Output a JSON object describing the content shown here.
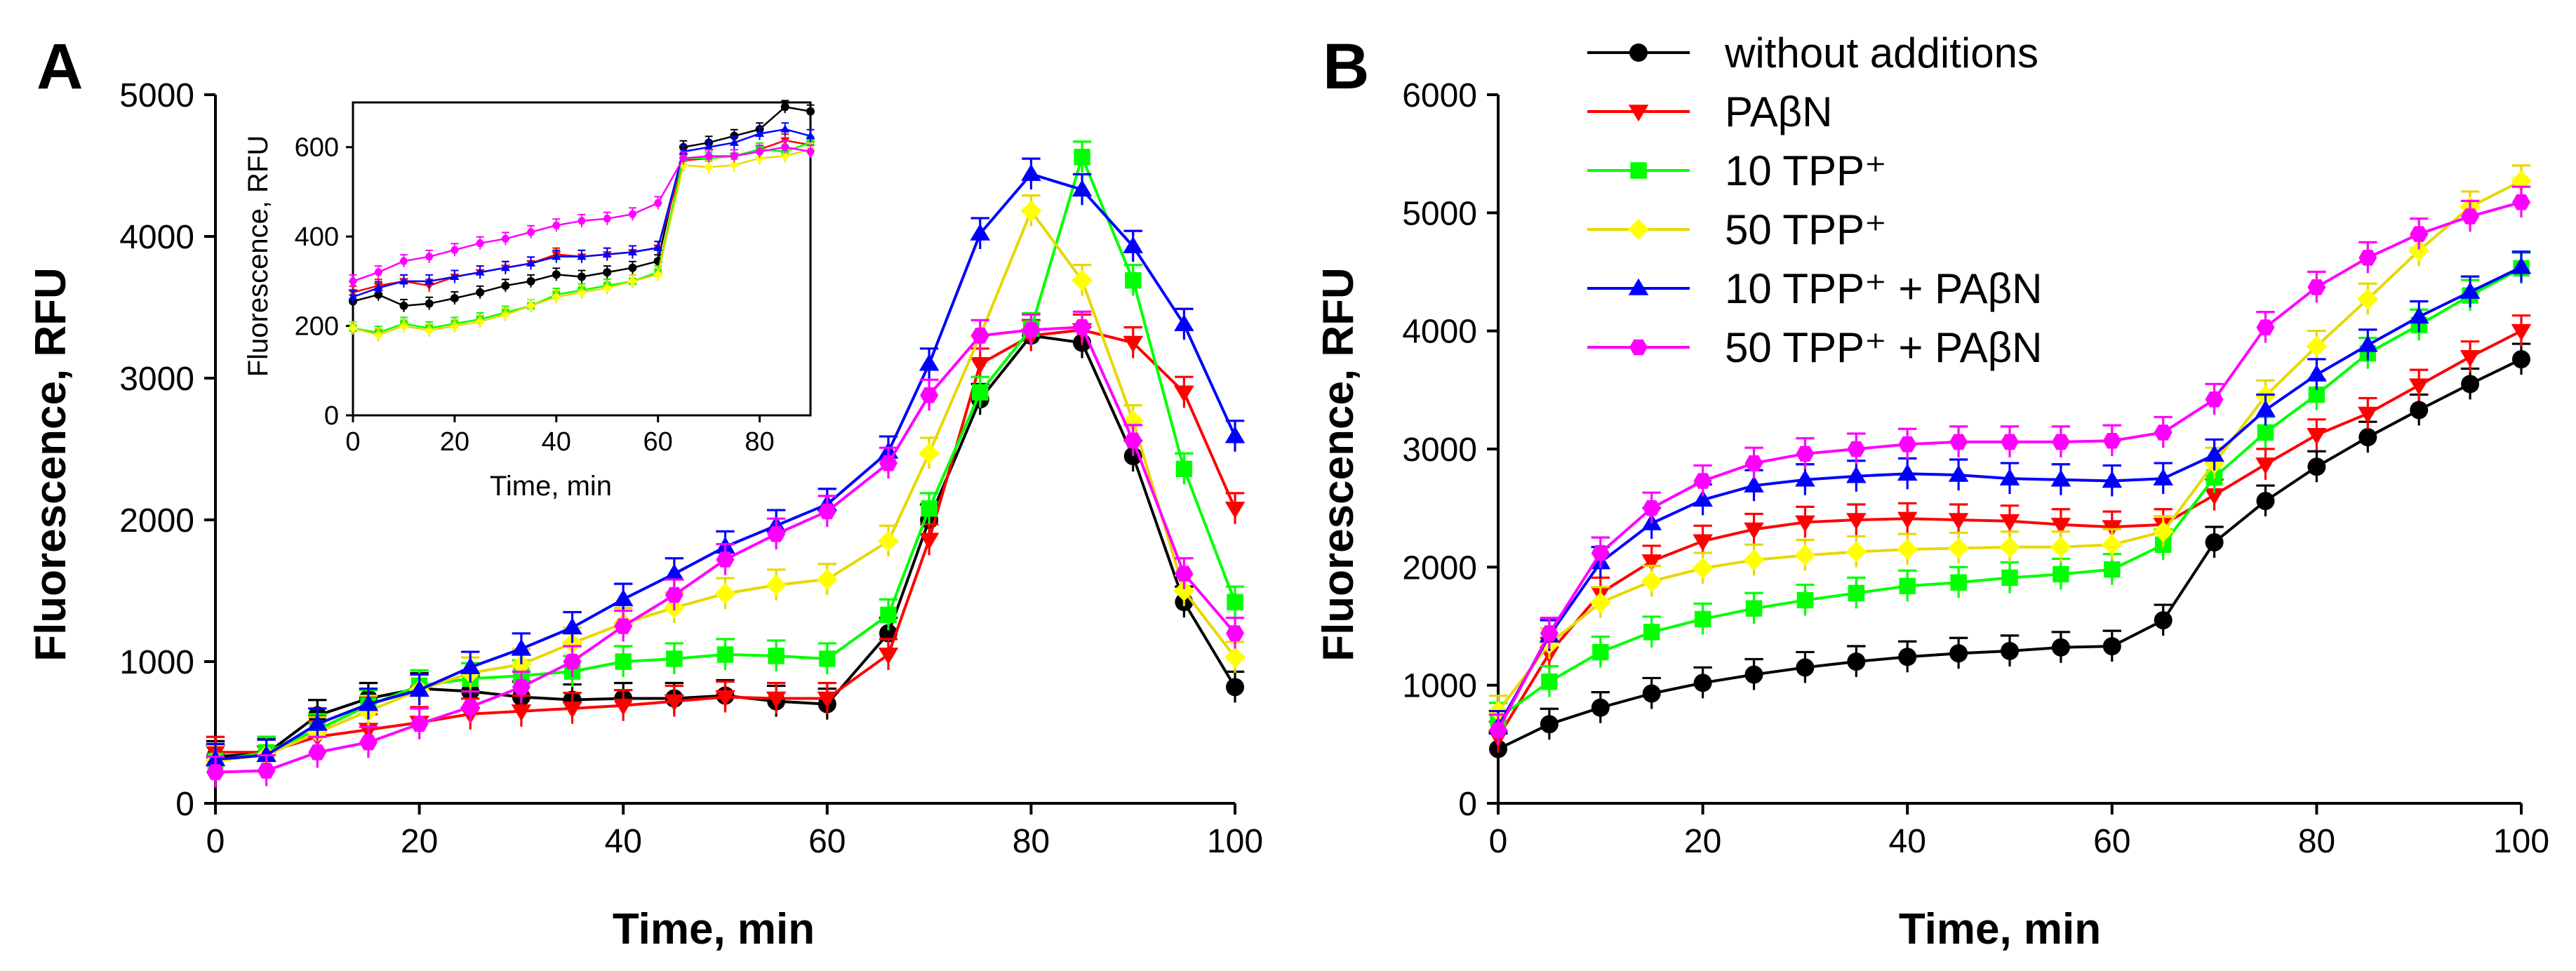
{
  "figure": {
    "legend": [
      {
        "name": "without additions",
        "color": "#000000",
        "marker": "circle"
      },
      {
        "name": "PAβN",
        "color": "#ff0000",
        "marker": "triangle-down"
      },
      {
        "name": "10 TPP⁺",
        "color": "#00ff00",
        "marker": "square"
      },
      {
        "name": "50 TPP⁺",
        "color": "#ffff00",
        "marker": "diamond"
      },
      {
        "name": "10 TPP⁺ + PAβN",
        "color": "#0000ff",
        "marker": "triangle-up"
      },
      {
        "name": "50 TPP⁺ + PAβN",
        "color": "#ff00ff",
        "marker": "hexagon"
      }
    ]
  },
  "chart_data": [
    {
      "panel": "A",
      "type": "line",
      "xlabel": "Time, min",
      "ylabel": "Fluorescence, RFU",
      "xlim": [
        0,
        100
      ],
      "ylim": [
        0,
        5000
      ],
      "xticks": [
        0,
        20,
        40,
        60,
        80,
        100
      ],
      "yticks": [
        0,
        1000,
        2000,
        3000,
        4000,
        5000
      ],
      "x": [
        0,
        5,
        10,
        15,
        20,
        25,
        30,
        35,
        40,
        45,
        50,
        55,
        60,
        66,
        70,
        75,
        80,
        85,
        90,
        95,
        100
      ],
      "series": [
        {
          "name": "without additions",
          "values": [
            330,
            350,
            620,
            740,
            810,
            790,
            750,
            730,
            740,
            740,
            760,
            720,
            700,
            1200,
            2000,
            2850,
            3300,
            3250,
            2450,
            1420,
            820
          ]
        },
        {
          "name": "PAβN",
          "values": [
            360,
            360,
            470,
            520,
            570,
            630,
            650,
            670,
            690,
            720,
            750,
            740,
            740,
            1050,
            1860,
            3100,
            3300,
            3340,
            3250,
            2900,
            2080
          ]
        },
        {
          "name": "10 TPP⁺",
          "values": [
            300,
            360,
            520,
            690,
            830,
            880,
            900,
            930,
            1000,
            1020,
            1050,
            1040,
            1020,
            1330,
            2080,
            2900,
            3350,
            4560,
            3690,
            2360,
            1420
          ]
        },
        {
          "name": "50 TPP⁺",
          "values": [
            300,
            340,
            500,
            650,
            800,
            920,
            980,
            1130,
            1270,
            1380,
            1480,
            1540,
            1580,
            1850,
            2470,
            3300,
            4180,
            3690,
            2700,
            1500,
            1030
          ]
        },
        {
          "name": "10 TPP⁺ + PAβN",
          "values": [
            310,
            340,
            560,
            700,
            800,
            960,
            1090,
            1240,
            1440,
            1620,
            1810,
            1960,
            2110,
            2480,
            3100,
            4020,
            4440,
            4330,
            3930,
            3380,
            2590
          ]
        },
        {
          "name": "50 TPP⁺ + PAβN",
          "values": [
            220,
            230,
            360,
            430,
            560,
            680,
            820,
            1000,
            1250,
            1470,
            1720,
            1900,
            2060,
            2400,
            2880,
            3300,
            3340,
            3360,
            2560,
            1620,
            1200
          ]
        }
      ],
      "inset": {
        "type": "line",
        "xlabel": "Time, min",
        "ylabel": "Fluorescence, RFU",
        "xlim": [
          0,
          90
        ],
        "ylim": [
          0,
          700
        ],
        "xticks": [
          0,
          20,
          40,
          60,
          80
        ],
        "yticks": [
          0,
          200,
          400,
          600
        ],
        "x": [
          0,
          5,
          10,
          15,
          20,
          25,
          30,
          35,
          40,
          45,
          50,
          55,
          60,
          65,
          70,
          75,
          80,
          85,
          90
        ],
        "series": [
          {
            "name": "without additions",
            "values": [
              255,
              270,
              245,
              250,
              262,
              275,
              290,
              300,
              315,
              310,
              320,
              330,
              345,
              600,
              610,
              625,
              640,
              690,
              680
            ]
          },
          {
            "name": "PAβN",
            "values": [
              275,
              290,
              300,
              290,
              310,
              320,
              330,
              340,
              360,
              355,
              360,
              365,
              375,
              570,
              575,
              580,
              595,
              615,
              605
            ]
          },
          {
            "name": "10 TPP⁺",
            "values": [
              195,
              185,
              205,
              195,
              205,
              215,
              230,
              245,
              270,
              280,
              290,
              300,
              320,
              575,
              575,
              580,
              595,
              590,
              610
            ]
          },
          {
            "name": "50 TPP⁺",
            "values": [
              195,
              180,
              200,
              190,
              200,
              210,
              225,
              245,
              265,
              275,
              285,
              300,
              315,
              560,
              555,
              560,
              575,
              580,
              595
            ]
          },
          {
            "name": "10 TPP⁺ + PAβN",
            "values": [
              265,
              285,
              300,
              300,
              310,
              320,
              330,
              340,
              355,
              355,
              360,
              365,
              375,
              590,
              600,
              610,
              630,
              640,
              625
            ]
          },
          {
            "name": "50 TPP⁺ + PAβN",
            "values": [
              300,
              320,
              345,
              355,
              370,
              385,
              395,
              410,
              425,
              435,
              440,
              450,
              475,
              575,
              580,
              580,
              590,
              600,
              590
            ]
          }
        ]
      }
    },
    {
      "panel": "B",
      "type": "line",
      "xlabel": "Time, min",
      "ylabel": "Fluorescence, RFU",
      "xlim": [
        0,
        100
      ],
      "ylim": [
        0,
        6000
      ],
      "xticks": [
        0,
        20,
        40,
        60,
        80,
        100
      ],
      "yticks": [
        0,
        1000,
        2000,
        3000,
        4000,
        5000,
        6000
      ],
      "x": [
        0,
        5,
        10,
        15,
        20,
        25,
        30,
        35,
        40,
        45,
        50,
        55,
        60,
        65,
        70,
        75,
        80,
        85,
        90,
        95,
        100
      ],
      "series": [
        {
          "name": "without additions",
          "values": [
            460,
            670,
            810,
            930,
            1020,
            1090,
            1150,
            1200,
            1240,
            1270,
            1290,
            1320,
            1330,
            1550,
            2210,
            2560,
            2850,
            3100,
            3330,
            3550,
            3760
          ]
        },
        {
          "name": "PAβN",
          "values": [
            560,
            1270,
            1780,
            2050,
            2220,
            2320,
            2380,
            2400,
            2410,
            2400,
            2390,
            2360,
            2340,
            2360,
            2610,
            2870,
            3120,
            3300,
            3540,
            3780,
            4000
          ]
        },
        {
          "name": "10 TPP⁺",
          "values": [
            720,
            1030,
            1280,
            1450,
            1560,
            1650,
            1720,
            1780,
            1840,
            1870,
            1910,
            1940,
            1980,
            2190,
            2760,
            3140,
            3460,
            3810,
            4050,
            4300,
            4530
          ]
        },
        {
          "name": "50 TPP⁺",
          "values": [
            780,
            1350,
            1700,
            1880,
            1990,
            2060,
            2100,
            2130,
            2150,
            2160,
            2170,
            2170,
            2190,
            2300,
            2880,
            3450,
            3870,
            4270,
            4680,
            5050,
            5270
          ]
        },
        {
          "name": "10 TPP⁺ + PAβN",
          "values": [
            650,
            1420,
            2040,
            2370,
            2570,
            2690,
            2740,
            2770,
            2790,
            2780,
            2750,
            2740,
            2730,
            2750,
            2950,
            3330,
            3630,
            3880,
            4120,
            4330,
            4540
          ]
        },
        {
          "name": "50 TPP⁺ + PAβN",
          "values": [
            620,
            1440,
            2120,
            2500,
            2730,
            2880,
            2960,
            3000,
            3040,
            3060,
            3060,
            3060,
            3070,
            3140,
            3420,
            4030,
            4370,
            4620,
            4820,
            4970,
            5090
          ]
        }
      ]
    }
  ]
}
